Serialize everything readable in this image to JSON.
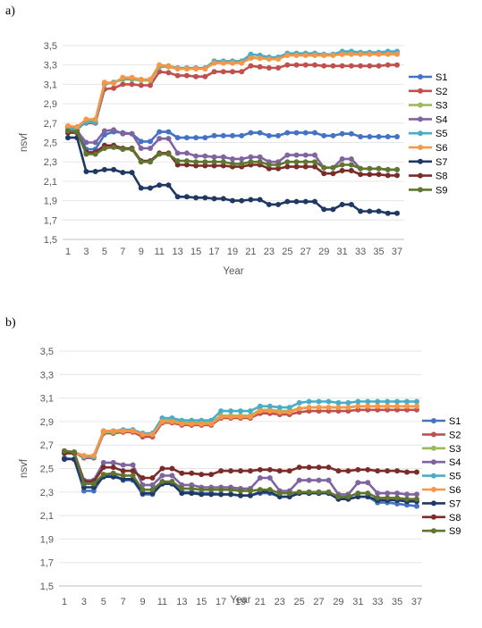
{
  "chart_data": [
    {
      "panel_label": "a)",
      "type": "line",
      "xlabel": "Year",
      "ylabel": "nsvf",
      "ylim": [
        1.5,
        3.5
      ],
      "yticks": [
        "1,5",
        "1,7",
        "1,9",
        "2,1",
        "2,3",
        "2,5",
        "2,7",
        "2,9",
        "3,1",
        "3,3",
        "3,5"
      ],
      "x": [
        1,
        2,
        3,
        4,
        5,
        6,
        7,
        8,
        9,
        10,
        11,
        12,
        13,
        14,
        15,
        16,
        17,
        18,
        19,
        20,
        21,
        22,
        23,
        24,
        25,
        26,
        27,
        28,
        29,
        30,
        31,
        32,
        33,
        34,
        35,
        36,
        37
      ],
      "xtick_labels": [
        "1",
        "3",
        "5",
        "7",
        "9",
        "11",
        "13",
        "15",
        "17",
        "19",
        "21",
        "23",
        "25",
        "27",
        "29",
        "31",
        "33",
        "35",
        "37"
      ],
      "legend_position": "right",
      "series": [
        {
          "name": "S1",
          "color": "#4472C4",
          "values": [
            2.64,
            2.62,
            2.43,
            2.43,
            2.58,
            2.61,
            2.6,
            2.59,
            2.51,
            2.51,
            2.61,
            2.61,
            2.55,
            2.55,
            2.55,
            2.55,
            2.57,
            2.57,
            2.57,
            2.57,
            2.6,
            2.6,
            2.57,
            2.57,
            2.6,
            2.6,
            2.6,
            2.6,
            2.57,
            2.57,
            2.59,
            2.59,
            2.56,
            2.56,
            2.56,
            2.56,
            2.56
          ]
        },
        {
          "name": "S2",
          "color": "#C0504D",
          "values": [
            2.66,
            2.66,
            2.7,
            2.7,
            3.05,
            3.06,
            3.1,
            3.1,
            3.09,
            3.09,
            3.23,
            3.22,
            3.19,
            3.19,
            3.18,
            3.18,
            3.23,
            3.23,
            3.23,
            3.23,
            3.29,
            3.28,
            3.27,
            3.27,
            3.3,
            3.3,
            3.3,
            3.3,
            3.29,
            3.29,
            3.29,
            3.29,
            3.29,
            3.29,
            3.29,
            3.3,
            3.3
          ]
        },
        {
          "name": "S3",
          "color": "#9BBB59",
          "values": [
            2.64,
            2.63,
            2.72,
            2.72,
            3.1,
            3.12,
            3.15,
            3.15,
            3.14,
            3.14,
            3.28,
            3.28,
            3.26,
            3.26,
            3.26,
            3.26,
            3.32,
            3.32,
            3.32,
            3.32,
            3.38,
            3.37,
            3.37,
            3.37,
            3.4,
            3.4,
            3.4,
            3.4,
            3.4,
            3.4,
            3.42,
            3.42,
            3.42,
            3.42,
            3.42,
            3.42,
            3.42
          ]
        },
        {
          "name": "S4",
          "color": "#8064A2",
          "values": [
            2.63,
            2.62,
            2.5,
            2.5,
            2.62,
            2.63,
            2.59,
            2.59,
            2.44,
            2.44,
            2.54,
            2.54,
            2.39,
            2.39,
            2.36,
            2.36,
            2.35,
            2.35,
            2.33,
            2.33,
            2.35,
            2.35,
            2.3,
            2.3,
            2.37,
            2.37,
            2.37,
            2.37,
            2.24,
            2.24,
            2.33,
            2.33,
            2.23,
            2.23,
            2.23,
            2.22,
            2.22
          ]
        },
        {
          "name": "S5",
          "color": "#4BACC6",
          "values": [
            2.64,
            2.64,
            2.71,
            2.71,
            3.11,
            3.12,
            3.16,
            3.16,
            3.15,
            3.15,
            3.29,
            3.29,
            3.27,
            3.27,
            3.27,
            3.27,
            3.34,
            3.34,
            3.34,
            3.34,
            3.41,
            3.4,
            3.38,
            3.38,
            3.42,
            3.42,
            3.42,
            3.42,
            3.41,
            3.41,
            3.44,
            3.44,
            3.43,
            3.43,
            3.43,
            3.44,
            3.44
          ]
        },
        {
          "name": "S6",
          "color": "#F79646",
          "values": [
            2.67,
            2.66,
            2.74,
            2.74,
            3.12,
            3.11,
            3.17,
            3.17,
            3.15,
            3.15,
            3.3,
            3.29,
            3.26,
            3.26,
            3.26,
            3.26,
            3.32,
            3.32,
            3.32,
            3.32,
            3.37,
            3.37,
            3.36,
            3.36,
            3.4,
            3.4,
            3.4,
            3.4,
            3.4,
            3.4,
            3.41,
            3.41,
            3.41,
            3.41,
            3.41,
            3.41,
            3.41
          ]
        },
        {
          "name": "S7",
          "color": "#1F3864",
          "values": [
            2.55,
            2.55,
            2.2,
            2.2,
            2.22,
            2.22,
            2.19,
            2.19,
            2.03,
            2.03,
            2.06,
            2.06,
            1.94,
            1.94,
            1.93,
            1.93,
            1.92,
            1.92,
            1.9,
            1.9,
            1.91,
            1.91,
            1.86,
            1.86,
            1.89,
            1.89,
            1.89,
            1.89,
            1.81,
            1.81,
            1.86,
            1.86,
            1.79,
            1.79,
            1.79,
            1.77,
            1.77
          ]
        },
        {
          "name": "S8",
          "color": "#7B2C28",
          "values": [
            2.6,
            2.6,
            2.4,
            2.4,
            2.47,
            2.47,
            2.44,
            2.44,
            2.31,
            2.31,
            2.39,
            2.39,
            2.27,
            2.27,
            2.26,
            2.26,
            2.26,
            2.26,
            2.25,
            2.25,
            2.27,
            2.27,
            2.23,
            2.23,
            2.25,
            2.25,
            2.25,
            2.25,
            2.18,
            2.18,
            2.21,
            2.21,
            2.17,
            2.17,
            2.17,
            2.16,
            2.16
          ]
        },
        {
          "name": "S9",
          "color": "#5F7530",
          "values": [
            2.62,
            2.61,
            2.38,
            2.38,
            2.44,
            2.45,
            2.43,
            2.43,
            2.3,
            2.3,
            2.38,
            2.38,
            2.31,
            2.31,
            2.3,
            2.3,
            2.3,
            2.3,
            2.28,
            2.28,
            2.3,
            2.3,
            2.27,
            2.27,
            2.3,
            2.3,
            2.3,
            2.3,
            2.24,
            2.24,
            2.27,
            2.27,
            2.23,
            2.23,
            2.23,
            2.22,
            2.22
          ]
        }
      ]
    },
    {
      "panel_label": "b)",
      "type": "line",
      "xlabel": "Year",
      "ylabel": "nsvf",
      "ylim": [
        1.5,
        3.5
      ],
      "yticks": [
        "1,5",
        "1,7",
        "1,9",
        "2,1",
        "2,3",
        "2,5",
        "2,7",
        "2,9",
        "3,1",
        "3,3",
        "3,5"
      ],
      "x": [
        1,
        2,
        3,
        4,
        5,
        6,
        7,
        8,
        9,
        10,
        11,
        12,
        13,
        14,
        15,
        16,
        17,
        18,
        19,
        20,
        21,
        22,
        23,
        24,
        25,
        26,
        27,
        28,
        29,
        30,
        31,
        32,
        33,
        34,
        35,
        36,
        37
      ],
      "xtick_labels": [
        "1",
        "3",
        "5",
        "7",
        "9",
        "11",
        "13",
        "15",
        "17",
        "19",
        "21",
        "23",
        "25",
        "27",
        "29",
        "31",
        "33",
        "35",
        "37"
      ],
      "legend_position": "right",
      "series": [
        {
          "name": "S1",
          "color": "#4472C4",
          "values": [
            2.59,
            2.58,
            2.31,
            2.31,
            2.44,
            2.45,
            2.4,
            2.4,
            2.28,
            2.28,
            2.37,
            2.37,
            2.3,
            2.3,
            2.29,
            2.29,
            2.28,
            2.28,
            2.27,
            2.27,
            2.29,
            2.29,
            2.26,
            2.26,
            2.29,
            2.29,
            2.29,
            2.29,
            2.24,
            2.24,
            2.26,
            2.26,
            2.21,
            2.21,
            2.2,
            2.19,
            2.18
          ]
        },
        {
          "name": "S2",
          "color": "#C0504D",
          "values": [
            2.64,
            2.64,
            2.59,
            2.59,
            2.8,
            2.8,
            2.81,
            2.81,
            2.77,
            2.77,
            2.89,
            2.89,
            2.87,
            2.87,
            2.87,
            2.87,
            2.93,
            2.93,
            2.93,
            2.93,
            2.97,
            2.97,
            2.96,
            2.96,
            2.98,
            2.99,
            2.99,
            2.99,
            2.99,
            2.99,
            3.0,
            3.0,
            3.0,
            3.0,
            3.0,
            3.0,
            3.0
          ]
        },
        {
          "name": "S3",
          "color": "#9BBB59",
          "values": [
            2.64,
            2.64,
            2.6,
            2.6,
            2.81,
            2.81,
            2.82,
            2.82,
            2.79,
            2.79,
            2.91,
            2.91,
            2.89,
            2.89,
            2.89,
            2.89,
            2.95,
            2.95,
            2.95,
            2.95,
            3.0,
            3.0,
            2.99,
            2.99,
            3.01,
            3.02,
            3.02,
            3.02,
            3.02,
            3.02,
            3.03,
            3.03,
            3.03,
            3.03,
            3.03,
            3.03,
            3.03
          ]
        },
        {
          "name": "S4",
          "color": "#8064A2",
          "values": [
            2.65,
            2.64,
            2.4,
            2.4,
            2.55,
            2.55,
            2.53,
            2.53,
            2.36,
            2.36,
            2.44,
            2.44,
            2.36,
            2.36,
            2.34,
            2.34,
            2.34,
            2.34,
            2.33,
            2.33,
            2.42,
            2.42,
            2.31,
            2.31,
            2.4,
            2.4,
            2.4,
            2.4,
            2.28,
            2.28,
            2.38,
            2.38,
            2.29,
            2.29,
            2.29,
            2.28,
            2.28
          ]
        },
        {
          "name": "S5",
          "color": "#4BACC6",
          "values": [
            2.64,
            2.64,
            2.6,
            2.6,
            2.82,
            2.82,
            2.83,
            2.83,
            2.8,
            2.8,
            2.93,
            2.93,
            2.91,
            2.91,
            2.91,
            2.91,
            2.99,
            2.99,
            2.99,
            2.99,
            3.03,
            3.03,
            3.02,
            3.02,
            3.06,
            3.07,
            3.07,
            3.07,
            3.06,
            3.06,
            3.07,
            3.07,
            3.07,
            3.07,
            3.07,
            3.07,
            3.07
          ]
        },
        {
          "name": "S6",
          "color": "#F79646",
          "values": [
            2.64,
            2.64,
            2.61,
            2.61,
            2.82,
            2.82,
            2.82,
            2.82,
            2.79,
            2.79,
            2.9,
            2.9,
            2.88,
            2.88,
            2.88,
            2.88,
            2.94,
            2.94,
            2.94,
            2.94,
            2.99,
            2.99,
            2.98,
            2.98,
            3.01,
            3.02,
            3.02,
            3.02,
            3.02,
            3.02,
            3.03,
            3.03,
            3.03,
            3.03,
            3.03,
            3.03,
            3.03
          ]
        },
        {
          "name": "S7",
          "color": "#1F3864",
          "values": [
            2.58,
            2.58,
            2.34,
            2.34,
            2.43,
            2.43,
            2.41,
            2.41,
            2.29,
            2.29,
            2.37,
            2.37,
            2.29,
            2.29,
            2.28,
            2.28,
            2.28,
            2.28,
            2.27,
            2.27,
            2.3,
            2.3,
            2.26,
            2.26,
            2.29,
            2.29,
            2.29,
            2.29,
            2.24,
            2.24,
            2.26,
            2.26,
            2.23,
            2.23,
            2.23,
            2.22,
            2.22
          ]
        },
        {
          "name": "S8",
          "color": "#7B2C28",
          "values": [
            2.63,
            2.63,
            2.39,
            2.39,
            2.51,
            2.51,
            2.48,
            2.48,
            2.42,
            2.42,
            2.5,
            2.5,
            2.46,
            2.46,
            2.45,
            2.45,
            2.48,
            2.48,
            2.48,
            2.48,
            2.49,
            2.49,
            2.48,
            2.48,
            2.51,
            2.51,
            2.51,
            2.51,
            2.48,
            2.48,
            2.49,
            2.49,
            2.48,
            2.48,
            2.48,
            2.47,
            2.47
          ]
        },
        {
          "name": "S9",
          "color": "#5F7530",
          "values": [
            2.65,
            2.64,
            2.37,
            2.37,
            2.45,
            2.46,
            2.44,
            2.44,
            2.32,
            2.32,
            2.39,
            2.39,
            2.33,
            2.33,
            2.32,
            2.32,
            2.32,
            2.32,
            2.31,
            2.31,
            2.32,
            2.32,
            2.29,
            2.29,
            2.3,
            2.3,
            2.3,
            2.3,
            2.26,
            2.26,
            2.29,
            2.29,
            2.25,
            2.25,
            2.25,
            2.24,
            2.24
          ]
        }
      ]
    }
  ]
}
